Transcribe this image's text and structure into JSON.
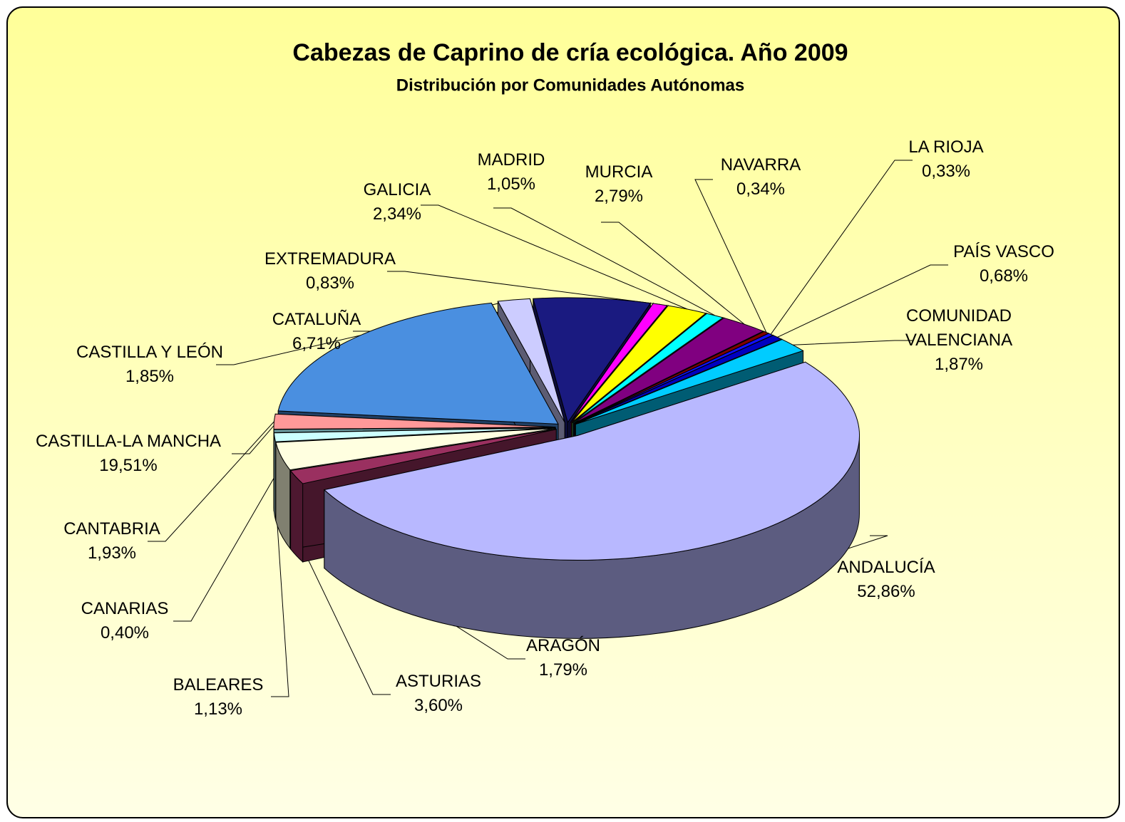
{
  "chart_data": {
    "type": "pie3d",
    "title": "Cabezas de Caprino de cría ecológica. Año 2009",
    "subtitle": "Distribución por Comunidades Autónomas",
    "categories": [
      "ANDALUCÍA",
      "ARAGÓN",
      "ASTURIAS",
      "BALEARES",
      "CANARIAS",
      "CANTABRIA",
      "CASTILLA-LA MANCHA",
      "CASTILLA Y LEÓN",
      "CATALUÑA",
      "EXTREMADURA",
      "GALICIA",
      "MADRID",
      "MURCIA",
      "NAVARRA",
      "LA RIOJA",
      "PAÍS VASCO",
      "COMUNIDAD VALENCIANA"
    ],
    "values": [
      52.86,
      1.79,
      3.6,
      1.13,
      0.4,
      1.93,
      19.51,
      1.85,
      6.71,
      0.83,
      2.34,
      1.05,
      2.79,
      0.34,
      0.33,
      0.68,
      1.87
    ],
    "value_labels": [
      "52,86%",
      "1,79%",
      "3,60%",
      "1,13%",
      "0,40%",
      "1,93%",
      "19,51%",
      "1,85%",
      "6,71%",
      "0,83%",
      "2,34%",
      "1,05%",
      "2,79%",
      "0,34%",
      "0,33%",
      "0,68%",
      "1,87%"
    ],
    "colors": [
      "#b8b8ff",
      "#9a3060",
      "#ffffe0",
      "#ccffff",
      "#6a9aa0",
      "#ff9999",
      "#4a8fe0",
      "#ccccff",
      "#1a1a80",
      "#ff00ff",
      "#ffff00",
      "#00ffff",
      "#800080",
      "#800000",
      "#1010ff",
      "#0000c0",
      "#00ccff"
    ]
  }
}
